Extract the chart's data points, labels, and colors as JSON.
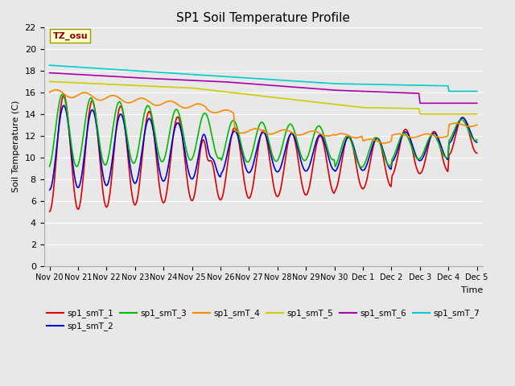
{
  "title": "SP1 Soil Temperature Profile",
  "xlabel": "Time",
  "ylabel": "Soil Temperature (C)",
  "ylim": [
    0,
    22
  ],
  "yticks": [
    0,
    2,
    4,
    6,
    8,
    10,
    12,
    14,
    16,
    18,
    20,
    22
  ],
  "tz_label": "TZ_osu",
  "bg_color": "#e8e8e8",
  "x_labels": [
    "Nov 20",
    "Nov 21",
    "Nov 22",
    "Nov 23",
    "Nov 24",
    "Nov 25",
    "Nov 26",
    "Nov 27",
    "Nov 28",
    "Nov 29",
    "Nov 30",
    "Dec 1",
    "Dec 2",
    "Dec 3",
    "Dec 4",
    "Dec 5"
  ],
  "series_order": [
    "sp1_smT_1",
    "sp1_smT_2",
    "sp1_smT_3",
    "sp1_smT_4",
    "sp1_smT_5",
    "sp1_smT_6",
    "sp1_smT_7"
  ],
  "series_colors": {
    "sp1_smT_1": "#dd0000",
    "sp1_smT_2": "#0000dd",
    "sp1_smT_3": "#00bb00",
    "sp1_smT_4": "#ff8800",
    "sp1_smT_5": "#cccc00",
    "sp1_smT_6": "#aa00aa",
    "sp1_smT_7": "#00cccc"
  },
  "lw": 1.2,
  "figsize": [
    6.4,
    4.8
  ],
  "dpi": 100
}
